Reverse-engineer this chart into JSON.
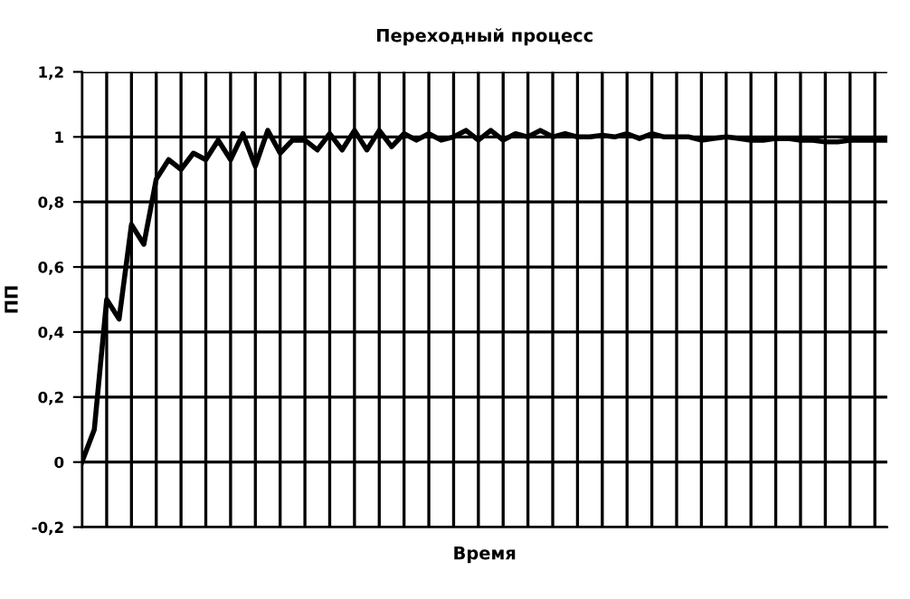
{
  "chart_data": {
    "type": "line",
    "title": "Переходный процесс",
    "xlabel": "Время",
    "ylabel": "ПП",
    "categories": [
      null,
      null,
      null,
      null,
      null,
      null,
      null,
      null,
      null,
      null,
      null,
      null,
      null,
      null,
      null,
      null,
      null,
      null,
      null,
      null,
      null,
      null,
      null,
      null,
      null,
      null,
      null,
      null,
      null,
      null,
      null,
      null,
      null,
      null,
      null,
      null,
      null,
      null,
      null,
      null,
      null,
      null,
      null,
      null,
      null,
      null,
      null,
      null,
      null,
      null,
      null,
      null,
      null,
      null,
      null,
      null,
      null,
      null,
      null,
      null,
      null,
      null,
      null,
      null,
      null,
      null
    ],
    "series": [
      {
        "color": "#000000",
        "values": [
          0,
          0.1,
          0.5,
          0.44,
          0.73,
          0.67,
          0.87,
          0.93,
          0.9,
          0.95,
          0.93,
          0.99,
          0.93,
          1.01,
          0.91,
          1.02,
          0.95,
          0.99,
          0.99,
          0.96,
          1.01,
          0.96,
          1.02,
          0.96,
          1.02,
          0.97,
          1.01,
          0.99,
          1.01,
          0.99,
          1.0,
          1.02,
          0.99,
          1.02,
          0.99,
          1.01,
          1.0,
          1.02,
          1.0,
          1.01,
          1.0,
          1.0,
          1.005,
          1.0,
          1.01,
          0.995,
          1.01,
          1.0,
          1.0,
          1.0,
          0.99,
          0.995,
          1.0,
          0.995,
          0.99,
          0.99,
          0.995,
          0.995,
          0.99,
          0.99,
          0.985,
          0.985,
          0.99,
          0.99,
          0.99,
          0.99
        ]
      }
    ],
    "ylim": [
      -0.2,
      1.2
    ],
    "yticks": [
      {
        "value": -0.2,
        "label": "-0,2"
      },
      {
        "value": 0,
        "label": "0"
      },
      {
        "value": 0.2,
        "label": "0,2"
      },
      {
        "value": 0.4,
        "label": "0,4"
      },
      {
        "value": 0.6,
        "label": "0,6"
      },
      {
        "value": 0.8,
        "label": "0,8"
      },
      {
        "value": 1,
        "label": "1"
      },
      {
        "value": 1.2,
        "label": "1,2"
      }
    ],
    "grid": true
  }
}
